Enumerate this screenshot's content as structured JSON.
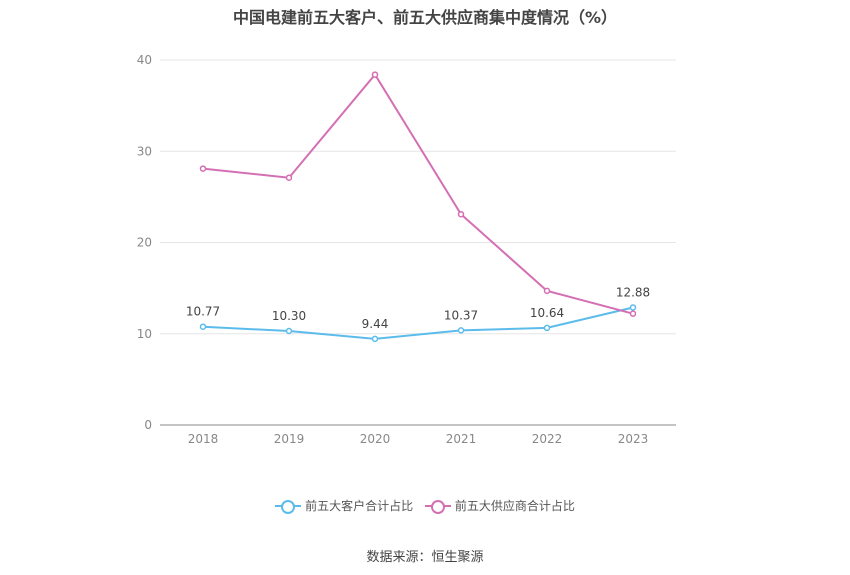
{
  "chart_data": {
    "type": "line",
    "title": "中国电建前五大客户、前五大供应商集中度情况（%）",
    "categories": [
      "2018",
      "2019",
      "2020",
      "2021",
      "2022",
      "2023"
    ],
    "y_ticks": [
      "0",
      "10",
      "20",
      "30",
      "40"
    ],
    "ylim": [
      0,
      40
    ],
    "grid": true,
    "legend_position": "bottom",
    "series": [
      {
        "name": "前五大客户合计占比",
        "color": "#5bbcec",
        "values": [
          10.77,
          10.3,
          9.44,
          10.37,
          10.64,
          12.88
        ],
        "labels": [
          "10.77",
          "10.30",
          "9.44",
          "10.37",
          "10.64",
          "12.88"
        ]
      },
      {
        "name": "前五大供应商合计占比",
        "color": "#d46fb4",
        "values": [
          28.1,
          27.1,
          38.4,
          23.1,
          14.7,
          12.2
        ]
      }
    ]
  },
  "source": "数据来源：恒生聚源"
}
